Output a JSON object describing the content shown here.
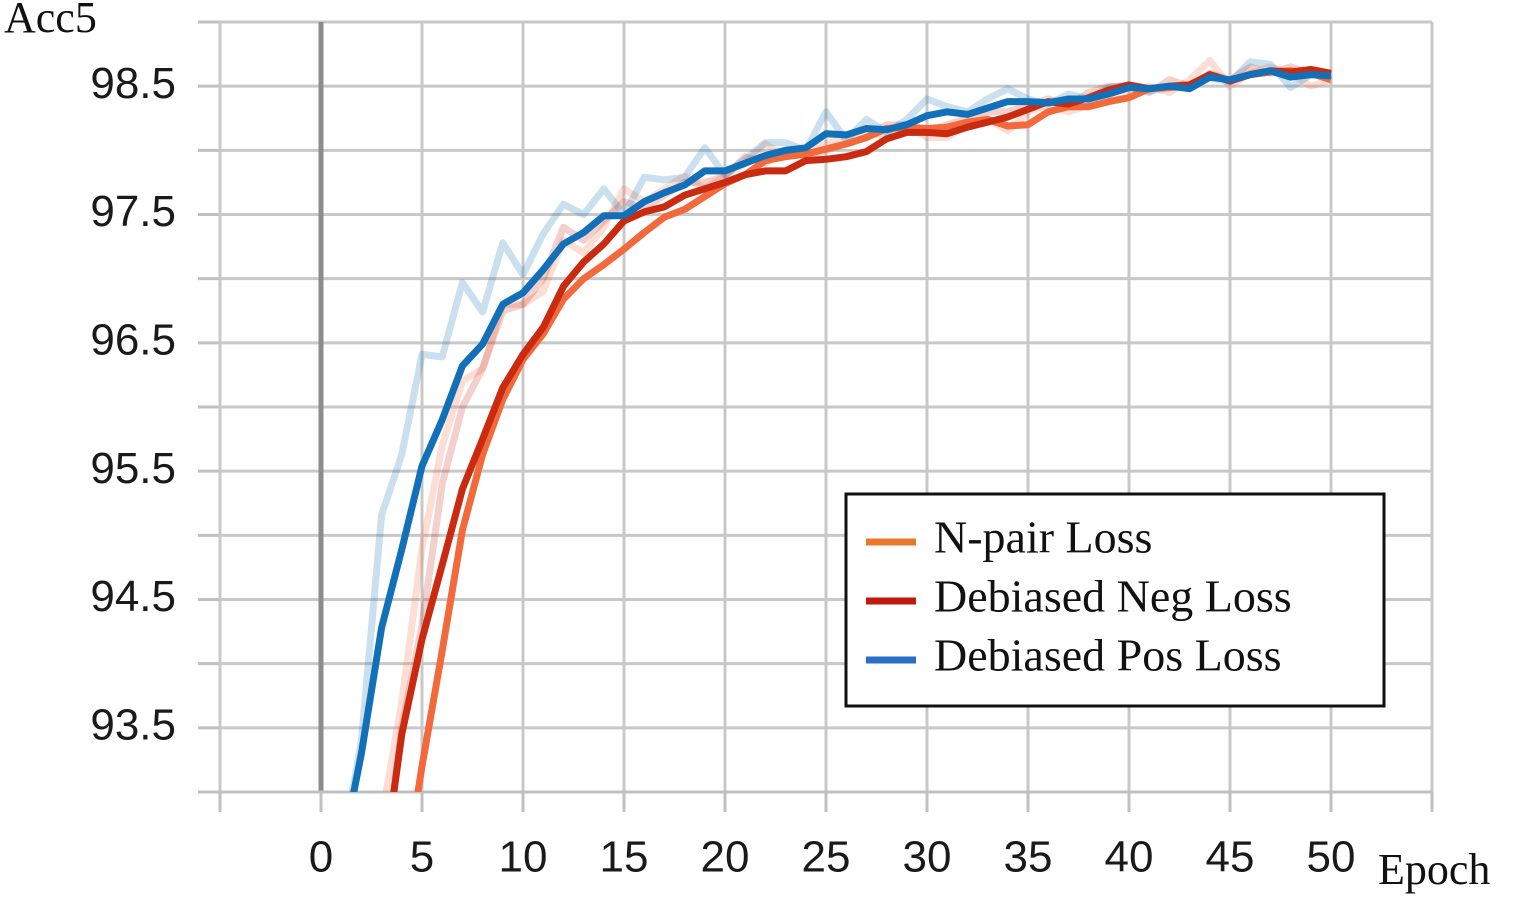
{
  "chart_data": {
    "type": "line",
    "ylabel": "Acc5",
    "xlabel": "Epoch",
    "x": [
      0,
      1,
      2,
      3,
      4,
      5,
      6,
      7,
      8,
      9,
      10,
      11,
      12,
      13,
      14,
      15,
      16,
      17,
      18,
      19,
      20,
      21,
      22,
      23,
      24,
      25,
      26,
      27,
      28,
      29,
      30,
      31,
      32,
      33,
      34,
      35,
      36,
      37,
      38,
      39,
      40,
      41,
      42,
      43,
      44,
      45,
      46,
      47,
      48,
      49,
      50
    ],
    "xlim": [
      -5,
      55
    ],
    "xticks": [
      0,
      5,
      10,
      15,
      20,
      25,
      30,
      35,
      40,
      45,
      50
    ],
    "xminor_ticks": [
      -5,
      55
    ],
    "ylim": [
      93,
      99
    ],
    "yticks": [
      93.5,
      94.5,
      95.5,
      96.5,
      97.5,
      98.5
    ],
    "yminor_ticks": [
      93,
      94,
      95,
      96,
      97,
      98,
      99
    ],
    "grid": true,
    "legend": "lower right",
    "series": [
      {
        "name": "N-pair Loss",
        "color": "#f26a3c",
        "legend_color": "#e8792a",
        "values": [
          null,
          null,
          null,
          null,
          92.2,
          93.2,
          94.1,
          95.04,
          95.63,
          96.06,
          96.37,
          96.57,
          96.84,
          97.0,
          97.11,
          97.23,
          97.36,
          97.48,
          97.54,
          97.64,
          97.74,
          97.81,
          97.92,
          97.95,
          97.97,
          98.01,
          98.05,
          98.1,
          98.17,
          98.18,
          98.17,
          98.18,
          98.22,
          98.24,
          98.19,
          98.2,
          98.3,
          98.34,
          98.34,
          98.38,
          98.41,
          98.48,
          98.49,
          98.5,
          98.59,
          98.54,
          98.59,
          98.61,
          98.62,
          98.6,
          98.55
        ],
        "raw_values": [
          null,
          null,
          null,
          92.8,
          93.7,
          94.9,
          95.7,
          96.2,
          96.3,
          96.8,
          96.8,
          96.9,
          97.3,
          97.2,
          97.4,
          97.7,
          97.6,
          97.7,
          97.8,
          97.7,
          97.8,
          97.9,
          98.05,
          97.95,
          98.0,
          98.05,
          98.1,
          98.15,
          98.1,
          98.2,
          98.1,
          98.1,
          98.2,
          98.25,
          98.15,
          98.3,
          98.35,
          98.3,
          98.35,
          98.4,
          98.45,
          98.5,
          98.45,
          98.55,
          98.7,
          98.5,
          98.6,
          98.65,
          98.6,
          98.5,
          98.55
        ]
      },
      {
        "name": "Debiased Neg Loss",
        "color": "#c92a10",
        "legend_color": "#c01a0c",
        "values": [
          null,
          null,
          null,
          92.3,
          93.45,
          94.19,
          94.77,
          95.36,
          95.75,
          96.15,
          96.41,
          96.62,
          96.94,
          97.13,
          97.27,
          97.45,
          97.52,
          97.56,
          97.65,
          97.7,
          97.75,
          97.81,
          97.84,
          97.84,
          97.92,
          97.93,
          97.95,
          97.99,
          98.09,
          98.14,
          98.14,
          98.13,
          98.18,
          98.22,
          98.26,
          98.32,
          98.38,
          98.36,
          98.41,
          98.47,
          98.51,
          98.48,
          98.5,
          98.51,
          98.59,
          98.54,
          98.59,
          98.62,
          98.61,
          98.63,
          98.6
        ],
        "raw_values": [
          null,
          null,
          null,
          92.3,
          93.5,
          94.3,
          95.4,
          96.0,
          96.3,
          96.75,
          96.8,
          97.0,
          97.4,
          97.3,
          97.45,
          97.6,
          97.55,
          97.65,
          97.75,
          97.75,
          97.8,
          97.95,
          97.9,
          98.0,
          97.95,
          98.0,
          98.05,
          98.1,
          98.2,
          98.2,
          98.15,
          98.2,
          98.25,
          98.3,
          98.3,
          98.35,
          98.4,
          98.35,
          98.45,
          98.5,
          98.5,
          98.45,
          98.55,
          98.5,
          98.6,
          98.55,
          98.65,
          98.6,
          98.65,
          98.6,
          98.6
        ]
      },
      {
        "name": "Debiased Pos Loss",
        "color": "#1170b8",
        "legend_color": "#2a6fc4",
        "values": [
          null,
          92.5,
          93.3,
          94.28,
          94.89,
          95.54,
          95.9,
          96.32,
          96.49,
          96.8,
          96.89,
          97.07,
          97.27,
          97.36,
          97.49,
          97.49,
          97.6,
          97.67,
          97.73,
          97.84,
          97.84,
          97.9,
          97.96,
          98.0,
          98.02,
          98.13,
          98.12,
          98.17,
          98.16,
          98.2,
          98.27,
          98.3,
          98.28,
          98.33,
          98.38,
          98.38,
          98.37,
          98.4,
          98.4,
          98.44,
          98.49,
          98.48,
          98.5,
          98.48,
          98.57,
          98.55,
          98.59,
          98.62,
          98.57,
          98.59,
          98.58
        ],
        "raw_values": [
          null,
          92.5,
          93.4,
          95.16,
          95.63,
          96.41,
          96.39,
          96.97,
          96.74,
          97.28,
          97.03,
          97.35,
          97.58,
          97.5,
          97.7,
          97.5,
          97.79,
          97.77,
          97.79,
          98.02,
          97.81,
          97.93,
          98.06,
          98.06,
          98.0,
          98.3,
          98.08,
          98.24,
          98.14,
          98.24,
          98.4,
          98.34,
          98.3,
          98.4,
          98.48,
          98.4,
          98.36,
          98.44,
          98.4,
          98.49,
          98.51,
          98.46,
          98.49,
          98.51,
          98.57,
          98.53,
          98.69,
          98.67,
          98.49,
          98.59,
          98.58
        ]
      }
    ]
  }
}
